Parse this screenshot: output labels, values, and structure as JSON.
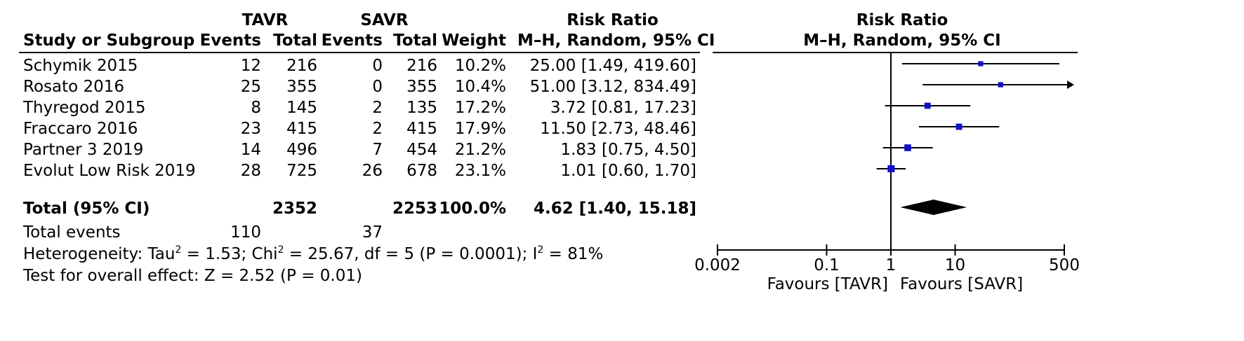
{
  "header": {
    "group1": "TAVR",
    "group2": "SAVR",
    "rr_top": "Risk Ratio",
    "plot_top": "Risk Ratio",
    "study_col": "Study or Subgroup",
    "events1": "Events",
    "total1": "Total",
    "events2": "Events",
    "total2": "Total",
    "weight": "Weight",
    "rr_method": "M–H, Random, 95% CI",
    "plot_method": "M–H, Random, 95% CI"
  },
  "rows": [
    {
      "study": "Schymik 2015",
      "e1": "12",
      "t1": "216",
      "e2": "0",
      "t2": "216",
      "weight": "10.2%",
      "ci_text": "25.00 [1.49, 419.60]"
    },
    {
      "study": "Rosato 2016",
      "e1": "25",
      "t1": "355",
      "e2": "0",
      "t2": "355",
      "weight": "10.4%",
      "ci_text": "51.00 [3.12, 834.49]"
    },
    {
      "study": "Thyregod 2015",
      "e1": "8",
      "t1": "145",
      "e2": "2",
      "t2": "135",
      "weight": "17.2%",
      "ci_text": "3.72 [0.81, 17.23]"
    },
    {
      "study": "Fraccaro 2016",
      "e1": "23",
      "t1": "415",
      "e2": "2",
      "t2": "415",
      "weight": "17.9%",
      "ci_text": "11.50 [2.73, 48.46]"
    },
    {
      "study": "Partner 3 2019",
      "e1": "14",
      "t1": "496",
      "e2": "7",
      "t2": "454",
      "weight": "21.2%",
      "ci_text": "1.83 [0.75, 4.50]"
    },
    {
      "study": "Evolut Low Risk 2019",
      "e1": "28",
      "t1": "725",
      "e2": "26",
      "t2": "678",
      "weight": "23.1%",
      "ci_text": "1.01 [0.60, 1.70]"
    }
  ],
  "total": {
    "label": "Total (95% CI)",
    "t1": "2352",
    "t2": "2253",
    "weight": "100.0%",
    "ci_text": "4.62 [1.40, 15.18]"
  },
  "events": {
    "label": "Total events",
    "e1": "110",
    "e2": "37"
  },
  "heterogeneity": {
    "prefix": "Heterogeneity: Tau",
    "tau_sup": "2",
    "mid": " = 1.53; Chi",
    "chi_sup": "2",
    "rest": " = 25.67, df = 5 (P = 0.0001); I",
    "i_sup": "2",
    "end": " = 81%"
  },
  "overall": "Test for overall effect: Z = 2.52 (P = 0.01)",
  "favours": {
    "left": "Favours [TAVR]",
    "right": "Favours [SAVR]"
  },
  "colors": {
    "marker": "#1010c8",
    "line": "#000000"
  },
  "chart_data": {
    "type": "forest",
    "scale": "log",
    "xlim": [
      0.002,
      500
    ],
    "xticks": [
      {
        "value": 0.002,
        "label": "0.002"
      },
      {
        "value": 0.1,
        "label": "0.1"
      },
      {
        "value": 1,
        "label": "1"
      },
      {
        "value": 10,
        "label": "10"
      },
      {
        "value": 500,
        "label": "500"
      }
    ],
    "studies": [
      {
        "name": "Schymik 2015",
        "rr": 25.0,
        "lo": 1.49,
        "hi": 419.6,
        "weight": 10.2
      },
      {
        "name": "Rosato 2016",
        "rr": 51.0,
        "lo": 3.12,
        "hi": 834.49,
        "weight": 10.4
      },
      {
        "name": "Thyregod 2015",
        "rr": 3.72,
        "lo": 0.81,
        "hi": 17.23,
        "weight": 17.2
      },
      {
        "name": "Fraccaro 2016",
        "rr": 11.5,
        "lo": 2.73,
        "hi": 48.46,
        "weight": 17.9
      },
      {
        "name": "Partner 3 2019",
        "rr": 1.83,
        "lo": 0.75,
        "hi": 4.5,
        "weight": 21.2
      },
      {
        "name": "Evolut Low Risk 2019",
        "rr": 1.01,
        "lo": 0.6,
        "hi": 1.7,
        "weight": 23.1
      }
    ],
    "pooled": {
      "rr": 4.62,
      "lo": 1.4,
      "hi": 15.18
    }
  }
}
